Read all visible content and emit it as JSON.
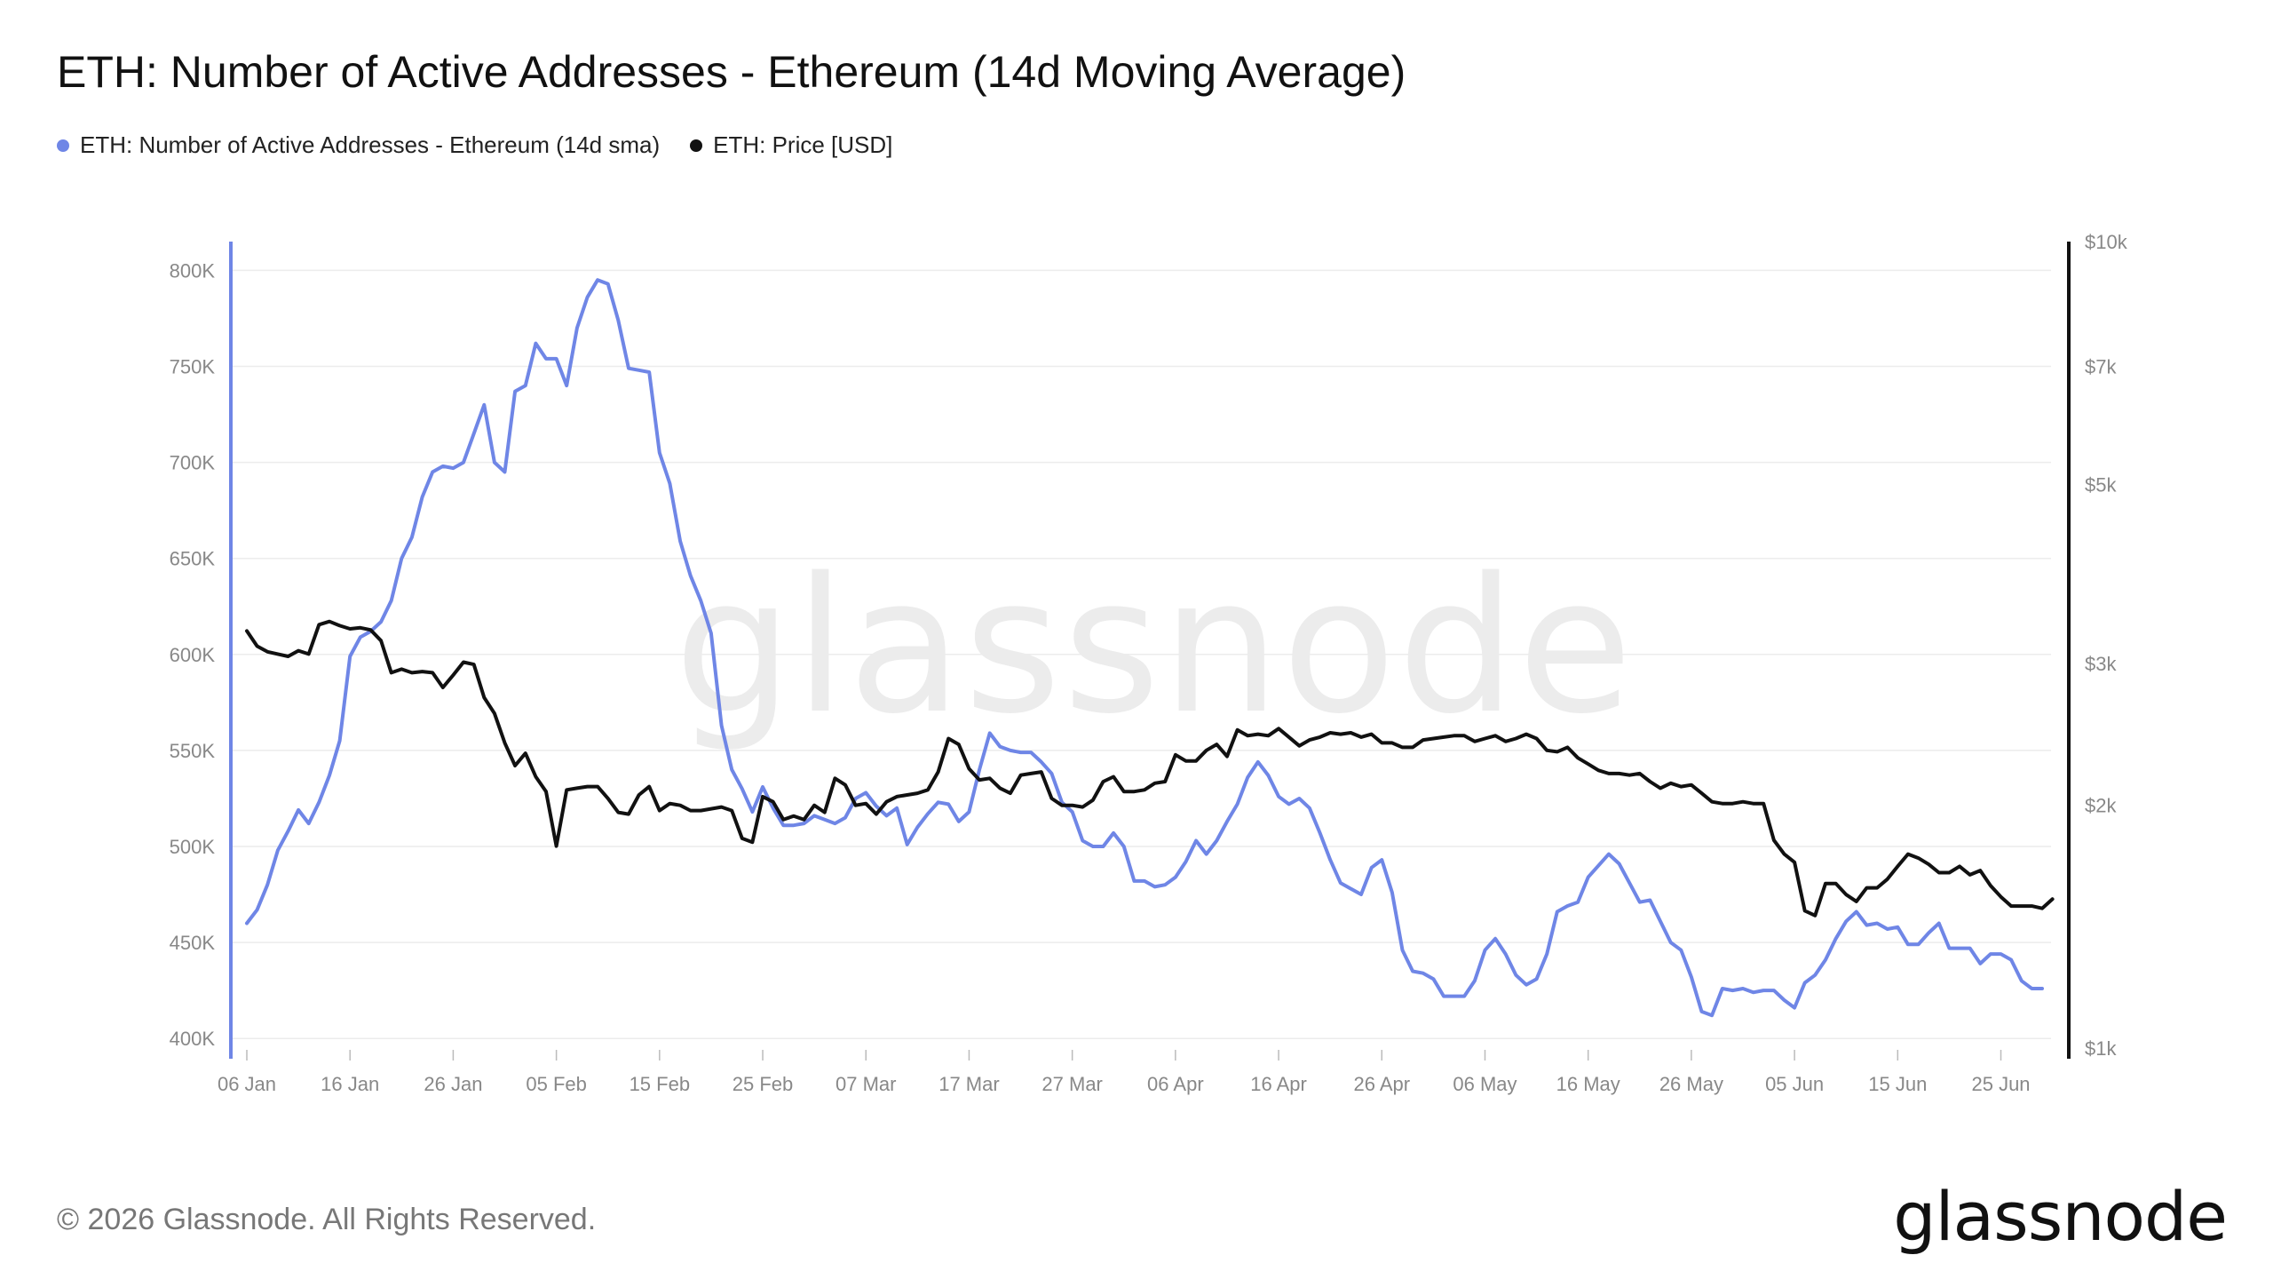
{
  "title": "ETH: Number of Active Addresses - Ethereum (14d Moving Average)",
  "legend": [
    {
      "label": "ETH: Number of Active Addresses - Ethereum (14d sma)",
      "color": "#6f86e6"
    },
    {
      "label": "ETH: Price [USD]",
      "color": "#111111"
    }
  ],
  "watermark": "glassnode",
  "footer": "© 2026 Glassnode. All Rights Reserved.",
  "brand": "glassnode",
  "chart_data": {
    "type": "line",
    "grid": true,
    "legend_position": "top-left",
    "x_tick_labels": [
      "06 Jan",
      "16 Jan",
      "26 Jan",
      "05 Feb",
      "15 Feb",
      "25 Feb",
      "07 Mar",
      "17 Mar",
      "27 Mar",
      "06 Apr",
      "16 Apr",
      "26 Apr",
      "06 May",
      "16 May",
      "26 May",
      "05 Jun",
      "15 Jun",
      "25 Jun"
    ],
    "left_axis": {
      "ylim": [
        395000,
        815000
      ],
      "tick_values": [
        400000,
        450000,
        500000,
        550000,
        600000,
        650000,
        700000,
        750000,
        800000
      ],
      "tick_labels": [
        "400K",
        "450K",
        "500K",
        "550K",
        "600K",
        "650K",
        "700K",
        "750K",
        "800K"
      ]
    },
    "right_axis": {
      "scale": "log",
      "ylim": [
        1000,
        10000
      ],
      "tick_values": [
        1000,
        2000,
        3000,
        5000,
        7000,
        10000
      ],
      "tick_labels": [
        "$1k",
        "$2k",
        "$3k",
        "$5k",
        "$7k",
        "$10k"
      ]
    },
    "x_start": "06 Jan",
    "series": [
      {
        "name": "ETH: Number of Active Addresses - Ethereum (14d sma)",
        "axis": "left",
        "color": "#6f86e6",
        "values": [
          460000,
          467000,
          480000,
          498000,
          508000,
          519000,
          512000,
          523000,
          537000,
          555000,
          599000,
          609000,
          612000,
          617000,
          628000,
          650000,
          661000,
          682000,
          695000,
          698000,
          697000,
          700000,
          715000,
          730000,
          700000,
          695000,
          737000,
          740000,
          762000,
          754000,
          754000,
          740000,
          770000,
          786000,
          795000,
          793000,
          774000,
          749000,
          748000,
          747000,
          705000,
          689000,
          659000,
          641000,
          628000,
          611000,
          563000,
          540000,
          530000,
          518000,
          531000,
          520000,
          511000,
          511000,
          512000,
          516000,
          514000,
          512000,
          515000,
          525000,
          528000,
          521000,
          516000,
          520000,
          501000,
          510000,
          517000,
          523000,
          522000,
          513000,
          518000,
          540000,
          559000,
          552000,
          550000,
          549000,
          549000,
          544000,
          538000,
          523000,
          518000,
          503000,
          500000,
          500000,
          507000,
          500000,
          482000,
          482000,
          479000,
          480000,
          484000,
          492000,
          503000,
          496000,
          503000,
          513000,
          522000,
          536000,
          544000,
          537000,
          526000,
          522000,
          525000,
          520000,
          507000,
          493000,
          481000,
          478000,
          475000,
          489000,
          493000,
          476000,
          446000,
          435000,
          434000,
          431000,
          422000,
          422000,
          422000,
          430000,
          446000,
          452000,
          444000,
          433000,
          428000,
          431000,
          444000,
          466000,
          469000,
          471000,
          484000,
          490000,
          496000,
          491000,
          481000,
          471000,
          472000,
          461000,
          450000,
          446000,
          432000,
          414000,
          412000,
          426000,
          425000,
          426000,
          424000,
          425000,
          425000,
          420000,
          416000,
          429000,
          433000,
          441000,
          452000,
          461000,
          466000,
          459000,
          460000,
          457000,
          458000,
          449000,
          449000,
          455000,
          460000,
          447000,
          447000,
          447000,
          439000,
          444000,
          444000,
          441000,
          430000,
          426000,
          426000
        ]
      },
      {
        "name": "ETH: Price [USD]",
        "axis": "right",
        "color": "#111111",
        "values": [
          3290,
          3150,
          3100,
          3080,
          3060,
          3110,
          3080,
          3350,
          3380,
          3340,
          3310,
          3320,
          3300,
          3200,
          2920,
          2950,
          2920,
          2930,
          2920,
          2800,
          2900,
          3010,
          2990,
          2720,
          2600,
          2390,
          2240,
          2320,
          2170,
          2080,
          1780,
          2090,
          2100,
          2110,
          2110,
          2040,
          1960,
          1950,
          2060,
          2110,
          1970,
          2010,
          2000,
          1970,
          1970,
          1980,
          1990,
          1970,
          1820,
          1800,
          2050,
          2020,
          1920,
          1940,
          1920,
          2000,
          1960,
          2160,
          2120,
          2000,
          2010,
          1950,
          2020,
          2050,
          2060,
          2070,
          2090,
          2200,
          2420,
          2380,
          2220,
          2150,
          2160,
          2100,
          2070,
          2180,
          2190,
          2200,
          2040,
          2000,
          2000,
          1990,
          2030,
          2140,
          2170,
          2080,
          2080,
          2090,
          2130,
          2140,
          2310,
          2270,
          2270,
          2340,
          2380,
          2300,
          2480,
          2440,
          2450,
          2440,
          2490,
          2430,
          2370,
          2410,
          2430,
          2460,
          2450,
          2460,
          2430,
          2450,
          2390,
          2390,
          2360,
          2360,
          2410,
          2420,
          2430,
          2440,
          2440,
          2400,
          2420,
          2440,
          2400,
          2420,
          2450,
          2420,
          2340,
          2330,
          2360,
          2290,
          2250,
          2210,
          2190,
          2190,
          2180,
          2190,
          2140,
          2100,
          2130,
          2110,
          2120,
          2070,
          2020,
          2010,
          2010,
          2020,
          2010,
          2010,
          1810,
          1740,
          1700,
          1480,
          1460,
          1600,
          1600,
          1550,
          1520,
          1580,
          1580,
          1620,
          1680,
          1740,
          1720,
          1690,
          1650,
          1650,
          1680,
          1640,
          1660,
          1590,
          1540,
          1500,
          1500,
          1500,
          1490,
          1530
        ]
      }
    ]
  }
}
